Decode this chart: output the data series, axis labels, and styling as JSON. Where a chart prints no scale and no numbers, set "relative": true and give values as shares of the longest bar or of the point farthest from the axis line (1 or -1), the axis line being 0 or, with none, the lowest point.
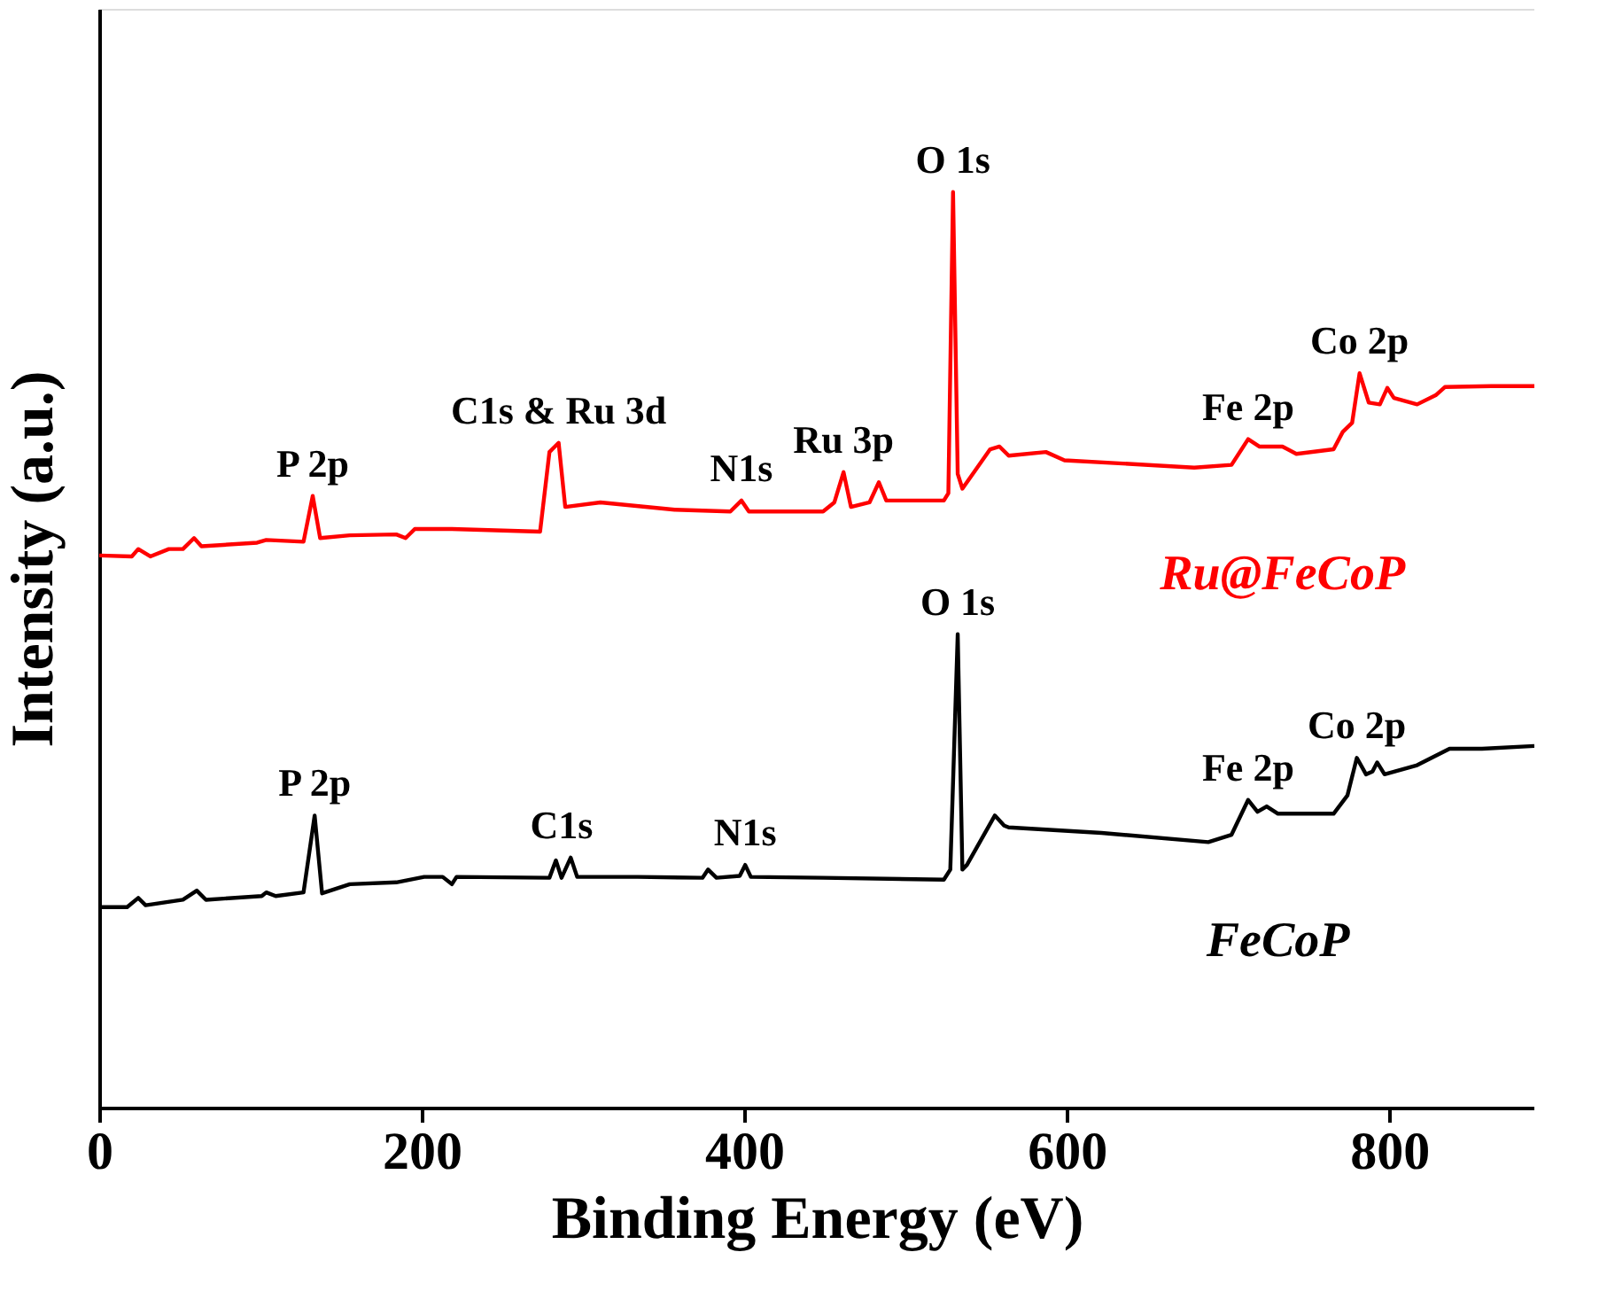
{
  "chart_data": {
    "type": "line",
    "relative": true,
    "xlabel": "Binding Energy (eV)",
    "ylabel": "Intensity (a.u.)",
    "xlim": [
      0,
      890
    ],
    "xticks": [
      0,
      200,
      400,
      600,
      800
    ],
    "series": [
      {
        "name": "Ru@FeCoP",
        "color": "#ff0000",
        "x": [
          0,
          20.2,
          24.2,
          31.7,
          43.2,
          51.9,
          58.8,
          63.4,
          97.9,
          103.6,
          126.7,
          132.4,
          137.0,
          155.4,
          184.2,
          190.0,
          195.7,
          218.7,
          273.4,
          279.2,
          284.9,
          289.0,
          310.8,
          356.9,
          391.4,
          398.3,
          402.9,
          448.9,
          455.9,
          461.6,
          466.2,
          477.7,
          483.5,
          488.1,
          523.8,
          526.6,
          529.5,
          532.4,
          535.3,
          552.5,
          558.3,
          564.0,
          587.1,
          598.6,
          679.1,
          702.2,
          712.5,
          719.4,
          733.8,
          742.4,
          765.5,
          771.2,
          777.0,
          781.6,
          787.3,
          794.2,
          798.8,
          802.9,
          817.3,
          828.8,
          834.5,
          863.3,
          890
        ],
        "values": [
          0.603,
          0.602,
          0.61,
          0.602,
          0.61,
          0.61,
          0.622,
          0.613,
          0.617,
          0.62,
          0.618,
          0.668,
          0.622,
          0.625,
          0.626,
          0.622,
          0.632,
          0.632,
          0.629,
          0.716,
          0.726,
          0.656,
          0.661,
          0.653,
          0.651,
          0.663,
          0.651,
          0.651,
          0.661,
          0.694,
          0.656,
          0.661,
          0.683,
          0.663,
          0.663,
          0.671,
          1.0,
          0.692,
          0.676,
          0.719,
          0.722,
          0.712,
          0.716,
          0.707,
          0.699,
          0.702,
          0.73,
          0.722,
          0.722,
          0.714,
          0.719,
          0.738,
          0.748,
          0.802,
          0.77,
          0.768,
          0.786,
          0.775,
          0.768,
          0.778,
          0.787,
          0.788,
          0.788
        ]
      },
      {
        "name": "FeCoP",
        "color": "#000000",
        "x": [
          0,
          17.3,
          24.2,
          28.8,
          51.9,
          60.5,
          66.2,
          100.8,
          103.6,
          109.4,
          126.7,
          133.6,
          138.2,
          155.4,
          184.2,
          201.5,
          213.0,
          218.7,
          221.6,
          279.2,
          283.2,
          286.7,
          292.4,
          296.4,
          333.9,
          374.1,
          377.6,
          382.8,
          397.2,
          400.6,
          404.1,
          448.9,
          523.8,
          527.8,
          532.4,
          535.3,
          538.1,
          555.4,
          561.2,
          564.0,
          621.6,
          687.8,
          702.2,
          712.5,
          718.3,
          724.0,
          731.0,
          765.5,
          774.1,
          779.9,
          785.6,
          789.6,
          792.5,
          797.1,
          817.3,
          837.4,
          857.6,
          890
        ],
        "values": [
          0.219,
          0.219,
          0.229,
          0.221,
          0.227,
          0.237,
          0.227,
          0.231,
          0.235,
          0.231,
          0.235,
          0.319,
          0.234,
          0.244,
          0.246,
          0.252,
          0.252,
          0.244,
          0.252,
          0.251,
          0.27,
          0.251,
          0.273,
          0.252,
          0.252,
          0.251,
          0.26,
          0.251,
          0.253,
          0.265,
          0.252,
          0.251,
          0.249,
          0.26,
          0.517,
          0.26,
          0.265,
          0.319,
          0.308,
          0.306,
          0.3,
          0.29,
          0.298,
          0.336,
          0.323,
          0.329,
          0.321,
          0.321,
          0.341,
          0.382,
          0.364,
          0.367,
          0.377,
          0.364,
          0.374,
          0.392,
          0.392,
          0.395
        ]
      }
    ],
    "annotations": [
      {
        "text": "P 2p",
        "x": 132.4,
        "y": 0.668
      },
      {
        "text": "C1s & Ru 3d",
        "x": 284.9,
        "y": 0.726
      },
      {
        "text": "N1s",
        "x": 398.3,
        "y": 0.663
      },
      {
        "text": "Ru 3p",
        "x": 461.6,
        "y": 0.694
      },
      {
        "text": "O 1s",
        "x": 529.5,
        "y": 1.0
      },
      {
        "text": "Fe 2p",
        "x": 712.5,
        "y": 0.73
      },
      {
        "text": "Co 2p",
        "x": 781.6,
        "y": 0.802
      },
      {
        "text": "P 2p",
        "x": 133.6,
        "y": 0.319
      },
      {
        "text": "C1s",
        "x": 286.7,
        "y": 0.273
      },
      {
        "text": "N1s",
        "x": 400.6,
        "y": 0.265
      },
      {
        "text": "O 1s",
        "x": 532.4,
        "y": 0.517
      },
      {
        "text": "Fe 2p",
        "x": 712.5,
        "y": 0.336
      },
      {
        "text": "Co 2p",
        "x": 779.9,
        "y": 0.382
      }
    ]
  }
}
